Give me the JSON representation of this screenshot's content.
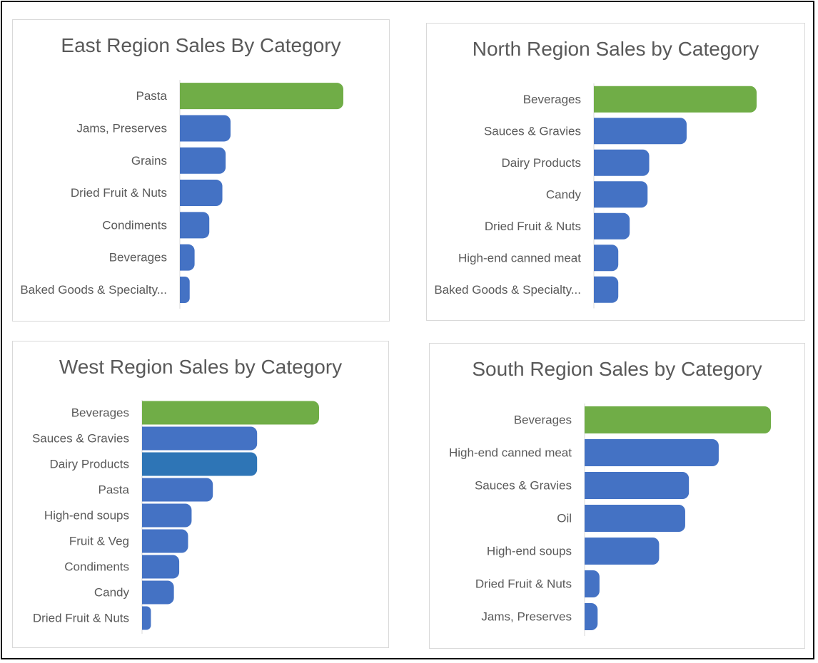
{
  "colors": {
    "accent": "#70ad47",
    "bar": "#4472c4",
    "bar_alt": "#2e75b6",
    "label": "#595959",
    "axis": "#d9d9d9"
  },
  "chart_data": [
    {
      "type": "bar",
      "orientation": "horizontal",
      "title": "East Region Sales By Category",
      "categories": [
        "Pasta",
        "Jams, Preserves",
        "Grains",
        "Dried Fruit & Nuts",
        "Condiments",
        "Beverages",
        "Baked Goods & Specialty..."
      ],
      "values": [
        100,
        31,
        28,
        26,
        18,
        9,
        6
      ],
      "highlight": [
        0
      ],
      "xlim": [
        0,
        100
      ],
      "grid": false,
      "legend": "none"
    },
    {
      "type": "bar",
      "orientation": "horizontal",
      "title": "North Region Sales by Category",
      "categories": [
        "Beverages",
        "Sauces & Gravies",
        "Dairy Products",
        "Candy",
        "Dried Fruit & Nuts",
        "High-end canned meat",
        "Baked Goods & Specialty..."
      ],
      "values": [
        100,
        57,
        34,
        33,
        22,
        15,
        15
      ],
      "highlight": [
        0
      ],
      "xlim": [
        0,
        100
      ],
      "grid": false,
      "legend": "none"
    },
    {
      "type": "bar",
      "orientation": "horizontal",
      "title": "West Region Sales by Category",
      "categories": [
        "Beverages",
        "Sauces & Gravies",
        "Dairy Products",
        "Pasta",
        "High-end soups",
        "Fruit & Veg",
        "Condiments",
        "Candy",
        "Dried Fruit & Nuts"
      ],
      "values": [
        100,
        65,
        65,
        40,
        28,
        26,
        21,
        18,
        5
      ],
      "highlight": [
        0
      ],
      "alt_color": [
        2
      ],
      "xlim": [
        0,
        100
      ],
      "grid": false,
      "legend": "none"
    },
    {
      "type": "bar",
      "orientation": "horizontal",
      "title": "South Region Sales by Category",
      "categories": [
        "Beverages",
        "High-end canned meat",
        "Sauces & Gravies",
        "Oil",
        "High-end soups",
        "Dried Fruit & Nuts",
        "Jams, Preserves"
      ],
      "values": [
        100,
        72,
        56,
        54,
        40,
        8,
        7
      ],
      "highlight": [
        0
      ],
      "xlim": [
        0,
        100
      ],
      "grid": false,
      "legend": "none"
    }
  ]
}
